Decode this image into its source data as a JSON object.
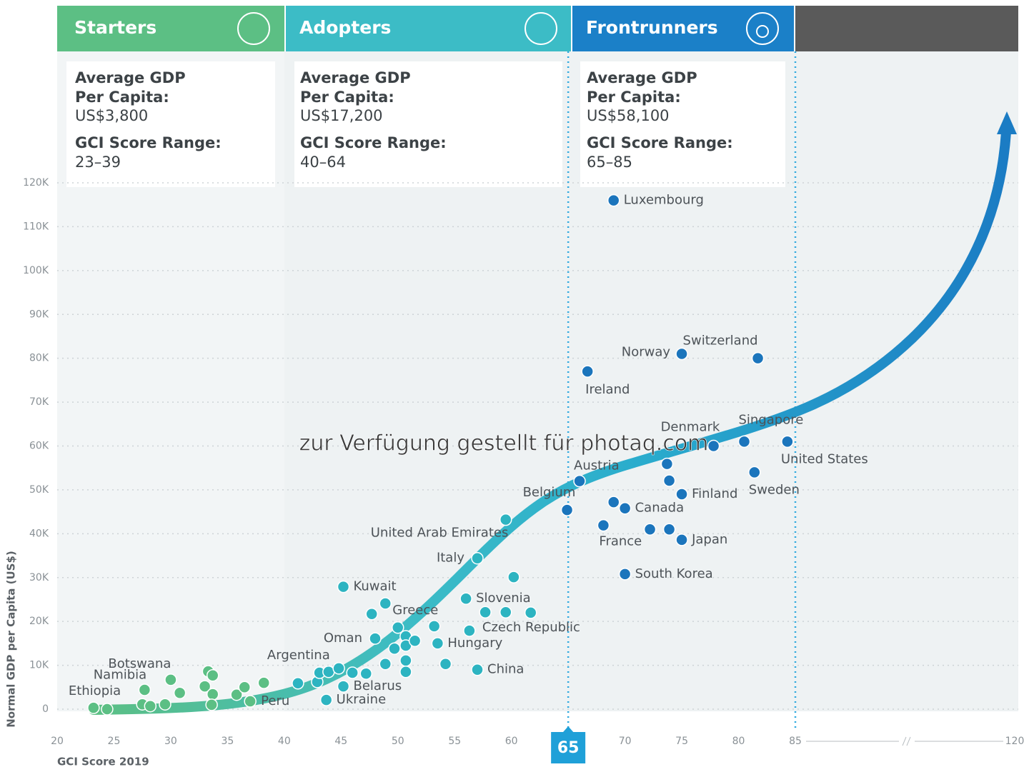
{
  "chart_data": {
    "type": "scatter",
    "groups": [
      {
        "name": "Starters",
        "gdp_label": [
          "Average GDP",
          "Per Capita:"
        ],
        "gdp": "US$3,800",
        "range_label": "GCI Score Range:",
        "range": "23–39"
      },
      {
        "name": "Adopters",
        "gdp_label": [
          "Average GDP",
          "Per Capita:"
        ],
        "gdp": "US$17,200",
        "range_label": "GCI Score Range:",
        "range": "40–64"
      },
      {
        "name": "Frontrunners",
        "gdp_label": [
          "Average GDP",
          "Per Capita:"
        ],
        "gdp": "US$58,100",
        "range_label": "GCI Score Range:",
        "range": "65–85"
      }
    ],
    "x_label": "GCI Score 2019",
    "y_label": "Normal GDP per Capita (US$)",
    "watermark": "zur Verfügung gestellt für photaq.com",
    "xlim": [
      20,
      85
    ],
    "xticks": [
      20,
      25,
      30,
      35,
      40,
      45,
      50,
      55,
      60,
      65,
      70,
      75,
      80,
      85
    ],
    "x_break_tick": 120,
    "thresholds": [
      65,
      85
    ],
    "ylim": [
      0,
      120000
    ],
    "yticks": [
      0,
      {
        "value": 10000,
        "label": "10K"
      },
      {
        "value": 20000,
        "label": "20K"
      },
      {
        "value": 30000,
        "label": "30K"
      },
      {
        "value": 40000,
        "label": "40K"
      },
      {
        "value": 50000,
        "label": "50K"
      },
      {
        "value": 60000,
        "label": "60K"
      },
      {
        "value": 70000,
        "label": "70K"
      },
      {
        "value": 80000,
        "label": "80K"
      },
      {
        "value": 90000,
        "label": "90K"
      },
      {
        "value": 100000,
        "label": "100K"
      },
      {
        "value": 110000,
        "label": "110K"
      },
      {
        "value": 120000,
        "label": "120K"
      }
    ],
    "grid": true,
    "series": [
      {
        "color": "#5cbf84",
        "x": [
          23.2,
          33.3,
          33.7,
          37.0,
          24.4,
          27.7,
          27.5,
          28.2,
          29.5,
          30.0,
          30.8,
          33.0,
          33.7,
          33.6,
          35.8,
          36.5,
          38.2
        ],
        "values": [
          300,
          8600,
          7700,
          1800,
          0,
          4400,
          1100,
          700,
          1100,
          6700,
          3700,
          5200,
          3400,
          1000,
          3300,
          5000,
          6000
        ],
        "labels": [
          "Ethiopia",
          "Botswana",
          "Namibia",
          "Peru",
          null,
          null,
          null,
          null,
          null,
          null,
          null,
          null,
          null,
          null,
          null,
          null,
          null
        ]
      },
      {
        "color": "#2db4c1",
        "x": [
          42.9,
          43.7,
          45.2,
          45.2,
          48.0,
          48.9,
          53.5,
          56.0,
          56.3,
          57.0,
          57.0,
          59.5,
          41.2,
          43.1,
          43.9,
          44.8,
          46.0,
          47.2,
          47.7,
          48.9,
          49.7,
          50.0,
          50.7,
          50.7,
          50.7,
          50.7,
          51.5,
          53.2,
          54.2,
          57.7,
          59.5,
          60.2,
          61.7
        ],
        "values": [
          6200,
          2100,
          5200,
          27900,
          16100,
          24100,
          15000,
          25200,
          17900,
          9000,
          34400,
          43200,
          5900,
          8300,
          8500,
          9300,
          8300,
          8100,
          21700,
          10300,
          13800,
          18600,
          16600,
          14500,
          11100,
          8500,
          15600,
          18900,
          10300,
          22100,
          22100,
          30100,
          22000
        ],
        "labels": [
          "Argentina",
          "Ukraine",
          "Belarus",
          "Kuwait",
          "Oman",
          "Greece",
          "Hungary",
          "Slovenia",
          "Czech Republic",
          "China",
          "Italy",
          "United Arab Emirates",
          null,
          null,
          null,
          null,
          null,
          null,
          null,
          null,
          null,
          null,
          null,
          null,
          null,
          null,
          null,
          null,
          null,
          null,
          null,
          null,
          null
        ]
      },
      {
        "color": "#1b75bc",
        "x": [
          64.9,
          66.0,
          66.7,
          68.1,
          69.0,
          70.0,
          70.0,
          75.0,
          75.0,
          75.0,
          77.8,
          80.5,
          81.4,
          81.7,
          84.3,
          69.0,
          72.2,
          73.7,
          73.9,
          73.9
        ],
        "values": [
          45400,
          52000,
          77000,
          41900,
          116000,
          45800,
          30800,
          81000,
          49000,
          38600,
          60000,
          61000,
          54000,
          80000,
          61000,
          47200,
          41000,
          55900,
          52100,
          41000
        ],
        "labels": [
          "Belgium",
          "Austria",
          "Ireland",
          "France",
          "Luxembourg",
          "Canada",
          "South Korea",
          "Norway",
          "Finland",
          "Japan",
          "Denmark",
          "Singapore",
          "Sweden",
          "Switzerland",
          "United States",
          null,
          null,
          null,
          null,
          null
        ]
      }
    ]
  }
}
